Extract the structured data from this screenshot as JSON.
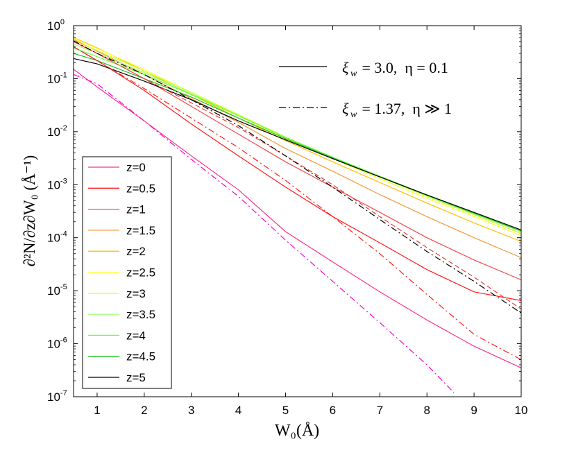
{
  "chart_data": {
    "type": "line",
    "xlabel": "W₀(Å)",
    "ylabel": "∂²N/∂z∂W₀ (Å⁻¹)",
    "xlim": [
      0.5,
      10
    ],
    "ylim": [
      1e-07,
      1
    ],
    "yscale": "log",
    "x_ticks": [
      "1",
      "2",
      "3",
      "4",
      "5",
      "6",
      "7",
      "8",
      "9",
      "10"
    ],
    "y_tick_labels": [
      {
        "base": "10",
        "exp": "0"
      },
      {
        "base": "10",
        "exp": "-1"
      },
      {
        "base": "10",
        "exp": "-2"
      },
      {
        "base": "10",
        "exp": "-3"
      },
      {
        "base": "10",
        "exp": "-4"
      },
      {
        "base": "10",
        "exp": "-5"
      },
      {
        "base": "10",
        "exp": "-6"
      },
      {
        "base": "10",
        "exp": "-7"
      }
    ],
    "x": [
      0.5,
      1,
      2,
      3,
      4,
      5,
      6,
      7,
      8,
      9,
      10
    ],
    "series": [
      {
        "name": "z=0",
        "color": "#ff2e8a",
        "style": "solid",
        "values": [
          0.15,
          0.07,
          0.016,
          0.0035,
          0.0008,
          0.00013,
          3.5e-05,
          9.5e-06,
          2.8e-06,
          9e-07,
          3.5e-07
        ]
      },
      {
        "name": "z=0.5",
        "color": "#ff1a1a",
        "style": "solid",
        "values": [
          0.4,
          0.22,
          0.06,
          0.014,
          0.0035,
          0.0009,
          0.00025,
          8e-05,
          2.5e-05,
          9.5e-06,
          6.5e-06
        ]
      },
      {
        "name": "z=1",
        "color": "#f24a4a",
        "style": "solid",
        "values": [
          0.5,
          0.3,
          0.1,
          0.03,
          0.009,
          0.0027,
          0.0009,
          0.0003,
          0.0001,
          3.8e-05,
          1.6e-05
        ]
      },
      {
        "name": "z=1.5",
        "color": "#f5963a",
        "style": "solid",
        "values": [
          0.55,
          0.33,
          0.12,
          0.042,
          0.015,
          0.0048,
          0.0018,
          0.00065,
          0.00025,
          0.0001,
          4.2e-05
        ]
      },
      {
        "name": "z=2",
        "color": "#ffbf00",
        "style": "solid",
        "values": [
          0.6,
          0.38,
          0.14,
          0.05,
          0.018,
          0.0068,
          0.0027,
          0.0011,
          0.00045,
          0.00019,
          8.5e-05
        ]
      },
      {
        "name": "z=2.5",
        "color": "#ffff33",
        "style": "solid",
        "values": [
          0.58,
          0.37,
          0.15,
          0.055,
          0.02,
          0.0075,
          0.0031,
          0.0013,
          0.00055,
          0.00025,
          0.00011
        ]
      },
      {
        "name": "z=3",
        "color": "#ccff33",
        "style": "solid",
        "values": [
          0.52,
          0.34,
          0.14,
          0.055,
          0.021,
          0.0079,
          0.0033,
          0.0014,
          0.0006,
          0.00027,
          0.00012
        ]
      },
      {
        "name": "z=3.5",
        "color": "#99ff66",
        "style": "solid",
        "values": [
          0.45,
          0.3,
          0.13,
          0.052,
          0.02,
          0.0078,
          0.0033,
          0.0014,
          0.00062,
          0.00028,
          0.00013
        ]
      },
      {
        "name": "z=4",
        "color": "#66ff33",
        "style": "solid",
        "values": [
          0.38,
          0.26,
          0.12,
          0.05,
          0.02,
          0.0078,
          0.0033,
          0.00145,
          0.00064,
          0.00029,
          0.000135
        ]
      },
      {
        "name": "z=4.5",
        "color": "#1fbf1f",
        "style": "solid",
        "values": [
          0.3,
          0.22,
          0.1,
          0.045,
          0.018,
          0.0074,
          0.0032,
          0.0014,
          0.00063,
          0.00029,
          0.000135
        ]
      },
      {
        "name": "z=5",
        "color": "#000000",
        "style": "solid",
        "values": [
          0.24,
          0.19,
          0.09,
          0.04,
          0.016,
          0.007,
          0.0031,
          0.0014,
          0.00064,
          0.0003,
          0.00014
        ]
      },
      {
        "name": "z=0 (ξ_w = 1.37, η ≫ 1)",
        "color": "#ff00cc",
        "style": "dashdot",
        "show_in_legend": false,
        "x": [
          0.5,
          1,
          2,
          3,
          4,
          5,
          6,
          7,
          8,
          8.57
        ],
        "values": [
          0.12,
          0.08,
          0.016,
          0.003,
          0.0006,
          9e-05,
          1.5e-05,
          2.5e-06,
          4e-07,
          1.2e-07
        ]
      },
      {
        "name": "z=0.5 (ξ_w = 1.37, η ≫ 1)",
        "color": "#ff1a1a",
        "style": "dashdot",
        "show_in_legend": false,
        "values": [
          0.4,
          0.22,
          0.065,
          0.018,
          0.005,
          0.0012,
          0.00025,
          5e-05,
          8.5e-06,
          1.5e-06,
          5e-07
        ]
      },
      {
        "name": "z=1 (ξ_w = 1.37, η ≫ 1)",
        "color": "#e83b3b",
        "style": "dashed",
        "show_in_legend": false,
        "values": [
          0.5,
          0.3,
          0.1,
          0.035,
          0.012,
          0.0035,
          0.001,
          0.00025,
          6.5e-05,
          1.8e-05,
          4.5e-06
        ]
      },
      {
        "name": "z=5 (ξ_w = 1.37, η ≫ 1)",
        "color": "#000000",
        "style": "dashdot",
        "show_in_legend": false,
        "values": [
          0.52,
          0.3,
          0.12,
          0.04,
          0.013,
          0.0035,
          0.0009,
          0.00022,
          5.5e-05,
          1.5e-05,
          3.8e-06
        ]
      }
    ],
    "legend": {
      "position": "lower-left",
      "entries": [
        "z=0",
        "z=0.5",
        "z=1",
        "z=1.5",
        "z=2",
        "z=2.5",
        "z=3",
        "z=3.5",
        "z=4",
        "z=4.5",
        "z=5"
      ]
    },
    "annotations": [
      {
        "id": "ann1",
        "style": "solid",
        "xi": "ξ",
        "sub": "w",
        "text": " = 3.0,  η = 0.1"
      },
      {
        "id": "ann2",
        "style": "dashdot",
        "xi": "ξ",
        "sub": "w",
        "text": " = 1.37,  η ≫ 1"
      }
    ]
  }
}
